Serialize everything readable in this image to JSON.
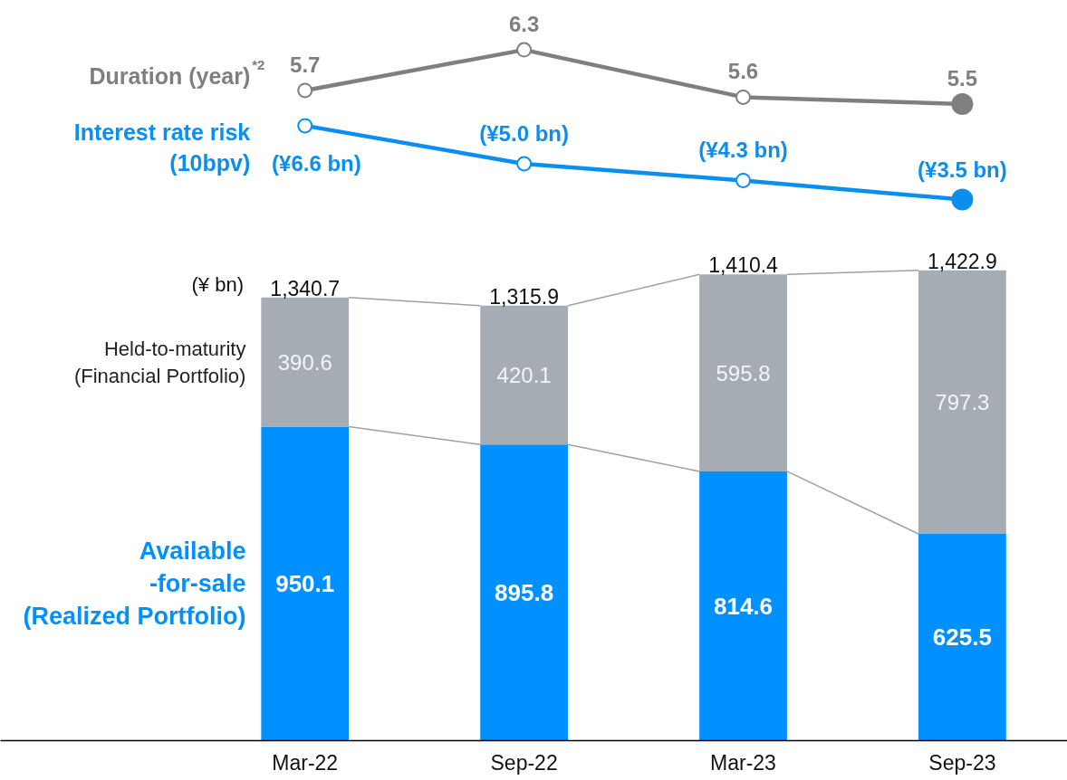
{
  "chart_data": [
    {
      "type": "line",
      "categories": [
        null,
        null,
        null,
        null
      ],
      "tick_labels": false,
      "grid": false,
      "marker": "circle",
      "line_style": "solid",
      "series": [
        {
          "name": "Duration (year)$^{*2}$",
          "color": "#7f7f7f",
          "values": [
            5.7,
            6.3,
            5.6,
            5.5
          ],
          "value_labels": [
            "5.7",
            "6.3",
            "5.6",
            "5.5"
          ]
        }
      ]
    },
    {
      "type": "line",
      "categories": [
        null,
        null,
        null,
        null
      ],
      "tick_labels": false,
      "grid": false,
      "marker": "circle",
      "line_style": "solid",
      "series": [
        {
          "name": "Interest rate risk\n(10bpv)",
          "color": "#0a8ff0",
          "values": [
            6.6,
            5.0,
            4.3,
            3.5
          ],
          "value_labels": [
            "(¥6.6 bn)",
            "(¥5.0 bn)",
            "(¥4.3 bn)",
            "(¥3.5 bn)"
          ]
        }
      ]
    },
    {
      "type": "bar",
      "stacked": true,
      "categories": [
        "Mar-22",
        "Sep-22",
        "Mar-23",
        "Sep-23"
      ],
      "tick_labels": "x",
      "grid": false,
      "ylabel": "(¥ bn)",
      "data_labels": true,
      "totals": [
        "1,340.7",
        "1,315.9",
        "1,410.4",
        "1,422.9"
      ],
      "series": [
        {
          "name": "Available\n-for-sale\n(Realized Portfolio)",
          "color": "#0090ff",
          "values": [
            950.1,
            895.8,
            814.6,
            625.5
          ]
        },
        {
          "name": "Held-to-maturity\n(Financial Portfolio)",
          "color": "#a5acb4",
          "values": [
            390.6,
            420.1,
            595.8,
            797.3
          ]
        }
      ]
    }
  ]
}
